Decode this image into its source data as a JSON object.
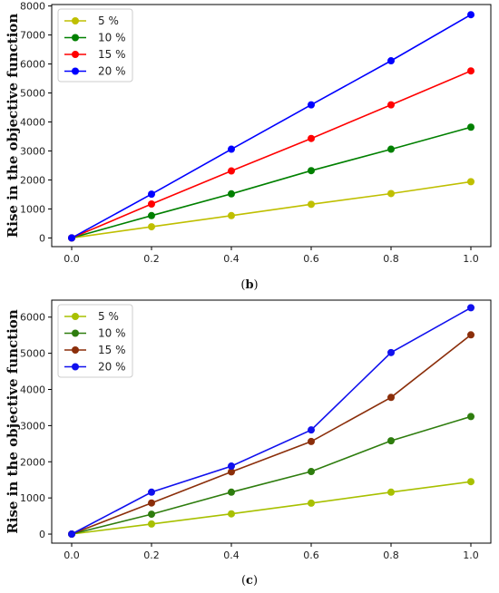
{
  "chart_data": [
    {
      "type": "line",
      "ylabel": "Rise in the objective function",
      "caption": {
        "open": "(",
        "letter": "b",
        "close": ")"
      },
      "xlim": [
        -0.05,
        1.05
      ],
      "ylim": [
        -300,
        8050
      ],
      "xticks": [
        "0.0",
        "0.2",
        "0.4",
        "0.6",
        "0.8",
        "1.0"
      ],
      "yticks": [
        "0",
        "1000",
        "2000",
        "3000",
        "4000",
        "5000",
        "6000",
        "7000",
        "8000"
      ],
      "x": [
        0.0,
        0.2,
        0.4,
        0.6,
        0.8,
        1.0
      ],
      "legend_position": "top-left",
      "grid": false,
      "series": [
        {
          "name": "5 %",
          "color": "#bfbf00",
          "values": [
            0,
            385,
            770,
            1160,
            1530,
            1940
          ]
        },
        {
          "name": "10 %",
          "color": "#008000",
          "values": [
            0,
            770,
            1520,
            2320,
            3060,
            3820
          ]
        },
        {
          "name": "15 %",
          "color": "#ff0000",
          "values": [
            0,
            1170,
            2310,
            3430,
            4590,
            5760
          ]
        },
        {
          "name": "20 %",
          "color": "#0000ff",
          "values": [
            0,
            1510,
            3060,
            4590,
            6110,
            7700
          ]
        }
      ]
    },
    {
      "type": "line",
      "ylabel": "Rise in the objective function",
      "caption": {
        "open": "(",
        "letter": "c",
        "close": ")"
      },
      "xlim": [
        -0.05,
        1.05
      ],
      "ylim": [
        -250,
        6470
      ],
      "xticks": [
        "0.0",
        "0.2",
        "0.4",
        "0.6",
        "0.8",
        "1.0"
      ],
      "yticks": [
        "0",
        "1000",
        "2000",
        "3000",
        "4000",
        "5000",
        "6000"
      ],
      "x": [
        0.0,
        0.2,
        0.4,
        0.6,
        0.8,
        1.0
      ],
      "legend_position": "top-left",
      "grid": false,
      "series": [
        {
          "name": "5 %",
          "color": "#a8c000",
          "values": [
            0,
            280,
            560,
            855,
            1160,
            1450
          ]
        },
        {
          "name": "10 %",
          "color": "#2e7d0e",
          "values": [
            0,
            550,
            1160,
            1730,
            2580,
            3250
          ]
        },
        {
          "name": "15 %",
          "color": "#8b2e0a",
          "values": [
            0,
            860,
            1720,
            2560,
            3780,
            5510
          ]
        },
        {
          "name": "20 %",
          "color": "#1010ee",
          "values": [
            0,
            1160,
            1880,
            2880,
            5020,
            6260
          ]
        }
      ]
    }
  ]
}
